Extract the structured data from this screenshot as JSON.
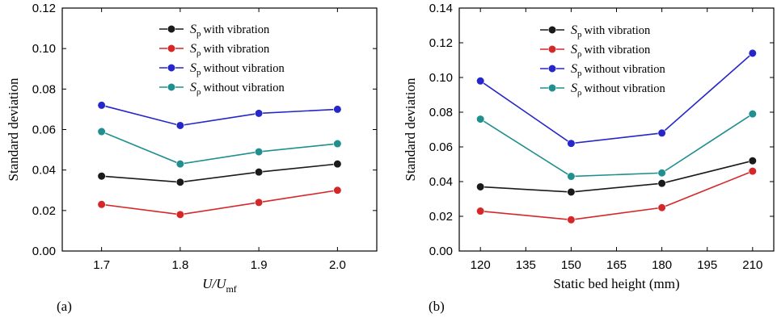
{
  "chart_data": [
    {
      "type": "line",
      "panel_label": "(a)",
      "xlabel": "U/U_mf",
      "xlabel_parts": {
        "main": "U/U",
        "sub": "mf"
      },
      "ylabel": "Standard deviation",
      "x": [
        1.7,
        1.8,
        1.9,
        2.0
      ],
      "xlim": [
        1.65,
        2.05
      ],
      "xticks": [
        "1.7",
        "1.8",
        "1.9",
        "2.0"
      ],
      "ylim": [
        0.0,
        0.12
      ],
      "yticks": [
        "0.00",
        "0.02",
        "0.04",
        "0.06",
        "0.08",
        "0.10",
        "0.12"
      ],
      "grid": false,
      "legend_position": "top-right",
      "series": [
        {
          "name": "Sp with vibration",
          "symbol": "S",
          "subscript": "p",
          "suffix": "with vibration",
          "color": "#1a1a1a",
          "values": [
            0.037,
            0.034,
            0.039,
            0.043
          ]
        },
        {
          "name": "Sρ with vibration",
          "symbol": "S",
          "subscript": "ρ",
          "suffix": "with vibration",
          "color": "#d62728",
          "values": [
            0.023,
            0.018,
            0.024,
            0.03
          ]
        },
        {
          "name": "Sp without vibration",
          "symbol": "S",
          "subscript": "p",
          "suffix": "without vibration",
          "color": "#2626c9",
          "values": [
            0.072,
            0.062,
            0.068,
            0.07
          ]
        },
        {
          "name": "Sρ without vibration",
          "symbol": "S",
          "subscript": "ρ",
          "suffix": "without vibration",
          "color": "#1f8f8f",
          "values": [
            0.059,
            0.043,
            0.049,
            0.053
          ]
        }
      ]
    },
    {
      "type": "line",
      "panel_label": "(b)",
      "xlabel": "Static bed height (mm)",
      "ylabel": "Standard deviation",
      "x": [
        120,
        150,
        180,
        210
      ],
      "xlim": [
        113,
        217
      ],
      "xticks": [
        "120",
        "135",
        "150",
        "165",
        "180",
        "195",
        "210"
      ],
      "ylim": [
        0.0,
        0.14
      ],
      "yticks": [
        "0.00",
        "0.02",
        "0.04",
        "0.06",
        "0.08",
        "0.10",
        "0.12",
        "0.14"
      ],
      "grid": false,
      "legend_position": "top-center",
      "series": [
        {
          "name": "Sp with vibration",
          "symbol": "S",
          "subscript": "p",
          "suffix": "with vibration",
          "color": "#1a1a1a",
          "values": [
            0.037,
            0.034,
            0.039,
            0.052
          ]
        },
        {
          "name": "Sρ with vibration",
          "symbol": "S",
          "subscript": "ρ",
          "suffix": "with vibration",
          "color": "#d62728",
          "values": [
            0.023,
            0.018,
            0.025,
            0.046
          ]
        },
        {
          "name": "Sp without vibration",
          "symbol": "S",
          "subscript": "p",
          "suffix": "without vibration",
          "color": "#2626c9",
          "values": [
            0.098,
            0.062,
            0.068,
            0.114
          ]
        },
        {
          "name": "Sρ without vibration",
          "symbol": "S",
          "subscript": "ρ",
          "suffix": "without vibration",
          "color": "#1f8f8f",
          "values": [
            0.076,
            0.043,
            0.045,
            0.079
          ]
        }
      ]
    }
  ]
}
